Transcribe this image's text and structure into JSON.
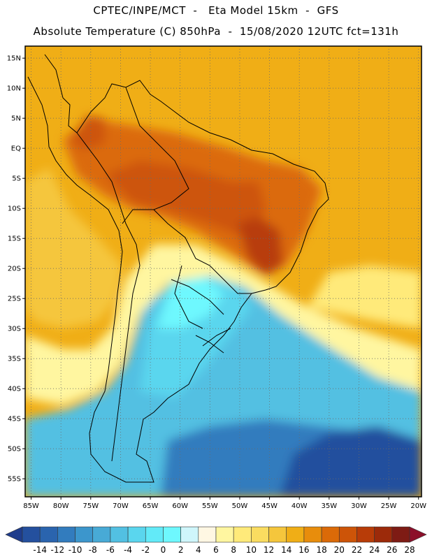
{
  "header": {
    "line1": "CPTEC/INPE/MCT  -   Eta Model 15km  -  GFS",
    "line2": "Absolute Temperature (C) 850hPa  -  15/08/2020 12UTC fct=131h"
  },
  "map": {
    "lon_range": [
      -86,
      -19.5
    ],
    "lat_range": [
      -58,
      17
    ],
    "lat_ticks": [
      {
        "v": 15,
        "label": "15N"
      },
      {
        "v": 10,
        "label": "10N"
      },
      {
        "v": 5,
        "label": "5N"
      },
      {
        "v": 0,
        "label": "EQ"
      },
      {
        "v": -5,
        "label": "5S"
      },
      {
        "v": -10,
        "label": "10S"
      },
      {
        "v": -15,
        "label": "15S"
      },
      {
        "v": -20,
        "label": "20S"
      },
      {
        "v": -25,
        "label": "25S"
      },
      {
        "v": -30,
        "label": "30S"
      },
      {
        "v": -35,
        "label": "35S"
      },
      {
        "v": -40,
        "label": "40S"
      },
      {
        "v": -45,
        "label": "45S"
      },
      {
        "v": -50,
        "label": "50S"
      },
      {
        "v": -55,
        "label": "55S"
      }
    ],
    "lon_ticks": [
      {
        "v": -85,
        "label": "85W"
      },
      {
        "v": -80,
        "label": "80W"
      },
      {
        "v": -75,
        "label": "75W"
      },
      {
        "v": -70,
        "label": "70W"
      },
      {
        "v": -65,
        "label": "65W"
      },
      {
        "v": -60,
        "label": "60W"
      },
      {
        "v": -55,
        "label": "55W"
      },
      {
        "v": -50,
        "label": "50W"
      },
      {
        "v": -45,
        "label": "45W"
      },
      {
        "v": -40,
        "label": "40W"
      },
      {
        "v": -35,
        "label": "35W"
      },
      {
        "v": -30,
        "label": "30W"
      },
      {
        "v": -25,
        "label": "25W"
      },
      {
        "v": -20,
        "label": "20W"
      }
    ]
  },
  "colorbar": {
    "labels": [
      "-14",
      "-12",
      "-10",
      "-8",
      "-6",
      "-4",
      "-2",
      "0",
      "2",
      "4",
      "6",
      "8",
      "10",
      "12",
      "14",
      "16",
      "18",
      "20",
      "22",
      "24",
      "26",
      "28"
    ],
    "colors": [
      "#1e3c8c",
      "#24509e",
      "#2a64ae",
      "#327cbe",
      "#3c96cc",
      "#48aad6",
      "#52c0e2",
      "#5ad6ee",
      "#62eaf8",
      "#6ef8fe",
      "#cff6fb",
      "#fff7e3",
      "#fff6a0",
      "#ffea7a",
      "#fadc60",
      "#f5c63c",
      "#f0ae16",
      "#e88d0c",
      "#db6a08",
      "#cd5408",
      "#b83c08",
      "#9c2a0a",
      "#7e1b14",
      "#8c0f2a"
    ]
  }
}
